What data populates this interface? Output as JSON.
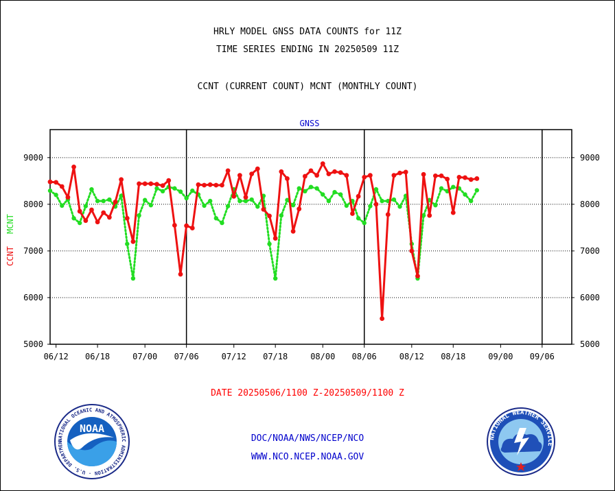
{
  "titles": {
    "line1": "HRLY MODEL GNSS DATA COUNTS for 11Z",
    "line2": "TIME SERIES ENDING IN 20250509 11Z",
    "line3": "CCNT (CURRENT COUNT) MCNT (MONTHLY COUNT)"
  },
  "date_range": "DATE 20250506/1100 Z-20250509/1100 Z",
  "footer": {
    "line1": "DOC/NOAA/NWS/NCEP/NCO",
    "line2": "WWW.NCO.NCEP.NOAA.GOV"
  },
  "logos": {
    "noaa_text": "NOAA",
    "noaa_ring": "NATIONAL OCEANIC AND ATMOSPHERIC ADMINISTRATION · U.S. DEPARTMENT OF COMMERCE ·",
    "nws_ring": "NATIONAL WEATHER SERVICE"
  },
  "colors": {
    "ccnt": "#ee1111",
    "mcnt": "#22dd22",
    "footer": "#0000cc"
  },
  "chart_data": {
    "type": "line",
    "title": "GNSS",
    "ylabel_ccnt": "CCNT",
    "ylabel_mcnt": "MCNT",
    "ylim": [
      5000,
      9600
    ],
    "xlim": [
      0,
      88
    ],
    "yticks": [
      5000,
      6000,
      7000,
      8000,
      9000
    ],
    "xtick_labels": [
      {
        "x": 1,
        "label": "06/12"
      },
      {
        "x": 8,
        "label": "06/18"
      },
      {
        "x": 16,
        "label": "07/00"
      },
      {
        "x": 23,
        "label": "07/06"
      },
      {
        "x": 31,
        "label": "07/12"
      },
      {
        "x": 38,
        "label": "07/18"
      },
      {
        "x": 46,
        "label": "08/00"
      },
      {
        "x": 53,
        "label": "08/06"
      },
      {
        "x": 61,
        "label": "08/12"
      },
      {
        "x": 68,
        "label": "08/18"
      },
      {
        "x": 76,
        "label": "09/00"
      },
      {
        "x": 83,
        "label": "09/06"
      }
    ],
    "day_separators": [
      23,
      53,
      83
    ],
    "grid": true,
    "series": [
      {
        "name": "CCNT",
        "color": "#ee1111",
        "style": "solid",
        "values": [
          8480,
          8470,
          8380,
          8150,
          8800,
          7850,
          7650,
          7880,
          7620,
          7820,
          7720,
          8050,
          8530,
          7700,
          7200,
          8440,
          8440,
          8440,
          8430,
          8400,
          8510,
          7550,
          6500,
          7540,
          7490,
          8420,
          8410,
          8420,
          8410,
          8410,
          8720,
          8170,
          8620,
          8150,
          8650,
          8760,
          7890,
          7750,
          7270,
          8700,
          8550,
          7420,
          7900,
          8600,
          8720,
          8620,
          8870,
          8650,
          8700,
          8680,
          8620,
          7800,
          8170,
          8580,
          8620,
          8000,
          5550,
          7780,
          8620,
          8670,
          8690,
          7000,
          6460,
          8640,
          7760,
          8610,
          8610,
          8540,
          7820,
          8580,
          8570,
          8530,
          8550
        ]
      },
      {
        "name": "MCNT",
        "color": "#22dd22",
        "style": "dotted",
        "values": [
          8290,
          8200,
          7970,
          8100,
          7700,
          7600,
          7960,
          8320,
          8070,
          8070,
          8100,
          7950,
          8180,
          7150,
          6410,
          7760,
          8090,
          7980,
          8340,
          8280,
          8370,
          8340,
          8270,
          8130,
          8290,
          8210,
          7970,
          8070,
          7700,
          7600,
          7960,
          8320,
          8070,
          8070,
          8100,
          7950,
          8180,
          7150,
          6410,
          7760,
          8090,
          7980,
          8340,
          8280,
          8370,
          8340,
          8210,
          8070,
          8260,
          8210,
          7970,
          8070,
          7700,
          7600,
          7960,
          8320,
          8070,
          8070,
          8100,
          7950,
          8180,
          7150,
          6410,
          7760,
          8090,
          7980,
          8340,
          8280,
          8370,
          8340,
          8210,
          8070,
          8300
        ]
      }
    ]
  }
}
